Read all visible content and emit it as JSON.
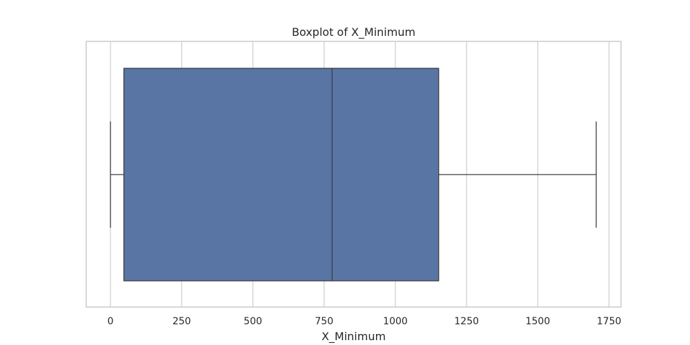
{
  "chart_data": {
    "type": "boxplot",
    "title": "Boxplot of X_Minimum",
    "xlabel": "X_Minimum",
    "ylabel": "",
    "orientation": "horizontal",
    "xlim": [
      -85,
      1792
    ],
    "xticks": [
      0,
      250,
      500,
      750,
      1000,
      1250,
      1500,
      1750
    ],
    "grid": true,
    "box": {
      "whisker_low": 0,
      "q1": 47,
      "median": 778,
      "q3": 1152,
      "whisker_high": 1705
    },
    "colors": {
      "box_fill": "#5875a4",
      "line": "#3d3d3d",
      "grid": "#cccccc"
    }
  }
}
